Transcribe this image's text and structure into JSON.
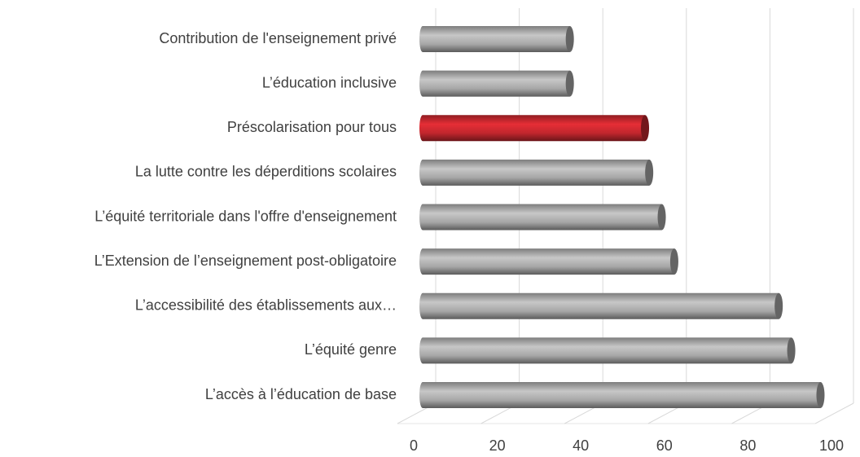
{
  "chart_data": {
    "type": "bar",
    "orientation": "horizontal",
    "categories": [
      "Contribution de l'enseignement privé",
      "L’éducation inclusive",
      "Préscolarisation pour tous",
      "La lutte contre les déperditions scolaires",
      "L’équité territoriale dans l'offre d'enseignement",
      "L’Extension de l’enseignement post-obligatoire",
      "L’accessibilité des établissements aux…",
      "L’équité genre",
      "L’accès à l’éducation de base"
    ],
    "values": [
      36,
      36,
      54,
      55,
      58,
      61,
      86,
      89,
      96
    ],
    "colors": [
      "#a6a6a6",
      "#a6a6a6",
      "#c0262d",
      "#a6a6a6",
      "#a6a6a6",
      "#a6a6a6",
      "#a6a6a6",
      "#a6a6a6",
      "#a6a6a6"
    ],
    "xlim": [
      0,
      100
    ],
    "xticks": [
      0,
      20,
      40,
      60,
      80,
      100
    ],
    "grid": true
  }
}
